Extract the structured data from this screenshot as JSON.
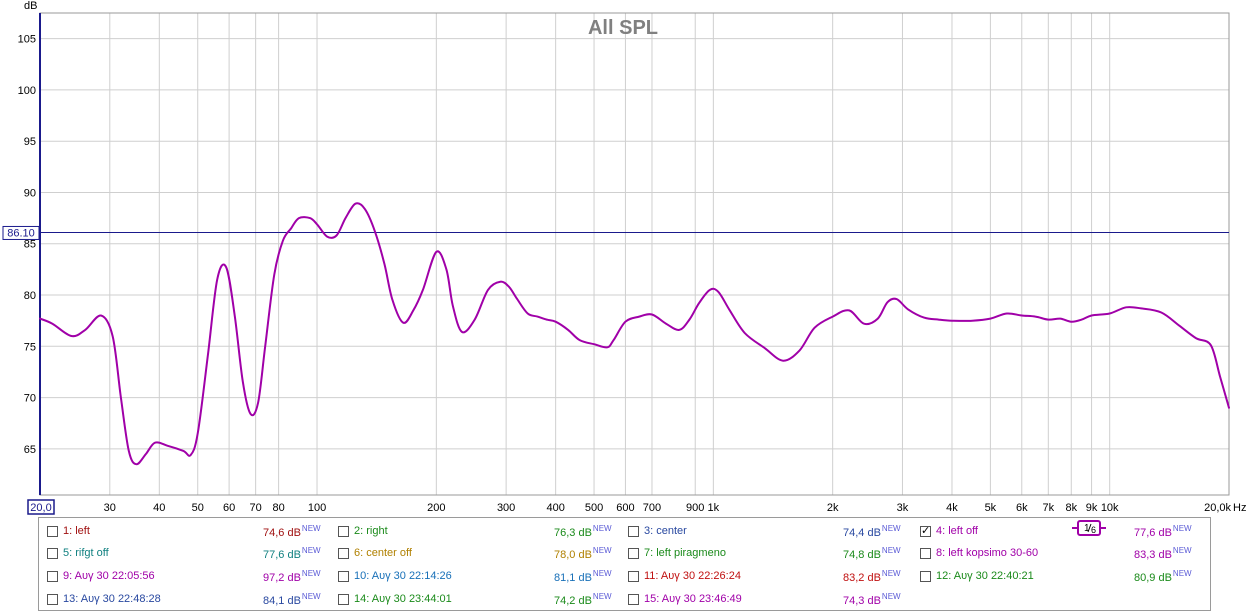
{
  "chart_data": {
    "type": "line",
    "title": "All SPL",
    "ylabel": "dB",
    "xlabel": "Hz",
    "x_scale": "log",
    "xlim": [
      20,
      20000
    ],
    "ylim": [
      60.5,
      107.5
    ],
    "grid": true,
    "y_ticks": [
      65,
      70,
      75,
      80,
      85,
      90,
      95,
      100,
      105
    ],
    "y_tick_labels": [
      "65",
      "70",
      "75",
      "80",
      "85",
      "90",
      "95",
      "100",
      "105"
    ],
    "x_ticks": [
      30,
      40,
      50,
      60,
      70,
      80,
      100,
      200,
      300,
      400,
      500,
      600,
      700,
      900,
      1000,
      2000,
      3000,
      4000,
      5000,
      6000,
      7000,
      8000,
      9000,
      10000,
      20000
    ],
    "x_tick_labels": [
      "30",
      "40",
      "50",
      "60",
      "70",
      "80",
      "100",
      "200",
      "300",
      "400",
      "500",
      "600",
      "700",
      "900",
      "1k",
      "2k",
      "3k",
      "4k",
      "5k",
      "6k",
      "7k",
      "8k",
      "9k",
      "10k",
      "20,0k"
    ],
    "x_start_label": "20,0",
    "marker_level": 86.1,
    "marker_label": "86.10",
    "series": [
      {
        "name": "4: left off",
        "color": "#a000a8",
        "x": [
          20,
          21.5,
          24,
          26,
          28.5,
          30.5,
          32,
          33.5,
          35,
          37,
          39,
          42,
          46,
          48,
          50,
          53,
          56,
          59,
          62,
          65,
          68,
          71,
          74,
          78,
          82,
          86,
          90,
          96,
          100,
          106,
          112,
          118,
          125,
          132,
          140,
          148,
          155,
          165,
          175,
          185,
          200,
          212,
          220,
          232,
          250,
          270,
          290,
          305,
          320,
          340,
          360,
          380,
          400,
          430,
          460,
          500,
          540,
          560,
          600,
          650,
          700,
          760,
          820,
          870,
          920,
          980,
          1030,
          1100,
          1200,
          1350,
          1500,
          1650,
          1800,
          2000,
          2200,
          2400,
          2600,
          2750,
          2900,
          3100,
          3400,
          3700,
          4000,
          4500,
          5000,
          5500,
          6000,
          6500,
          7000,
          7500,
          8000,
          8500,
          9000,
          10000,
          11000,
          12000,
          13500,
          15000,
          16500,
          18000,
          19000,
          20000
        ],
        "y": [
          77.7,
          77.2,
          76.0,
          76.6,
          78.0,
          76.0,
          70.0,
          64.8,
          63.5,
          64.5,
          65.6,
          65.3,
          64.8,
          64.4,
          66.5,
          74.0,
          81.5,
          82.7,
          78.0,
          71.5,
          68.4,
          69.5,
          75.0,
          82.0,
          85.3,
          86.5,
          87.5,
          87.5,
          86.9,
          85.7,
          85.8,
          87.5,
          88.9,
          88.4,
          86.2,
          83.0,
          79.5,
          77.3,
          78.5,
          80.5,
          84.2,
          82.5,
          79.0,
          76.4,
          77.6,
          80.5,
          81.3,
          80.8,
          79.6,
          78.2,
          77.9,
          77.6,
          77.4,
          76.6,
          75.6,
          75.2,
          74.9,
          75.6,
          77.4,
          77.9,
          78.1,
          77.2,
          76.6,
          77.6,
          79.2,
          80.5,
          80.3,
          78.5,
          76.3,
          74.8,
          73.6,
          74.6,
          76.8,
          77.9,
          78.5,
          77.2,
          77.7,
          79.3,
          79.6,
          78.6,
          77.8,
          77.6,
          77.5,
          77.5,
          77.7,
          78.2,
          78.0,
          77.9,
          77.6,
          77.7,
          77.4,
          77.6,
          78.0,
          78.2,
          78.8,
          78.7,
          78.3,
          77.0,
          75.8,
          75.1,
          72.0,
          69.0
        ]
      }
    ]
  },
  "legend": {
    "items": [
      {
        "label": "1: left",
        "value": "74,6 dB",
        "new": "NEW",
        "color": "#a01010",
        "checked": false
      },
      {
        "label": "2: right",
        "value": "76,3 dB",
        "new": "NEW",
        "color": "#1a8a1a",
        "checked": false
      },
      {
        "label": "3: center",
        "value": "74,4 dB",
        "new": "NEW",
        "color": "#2848a0",
        "checked": false
      },
      {
        "label": "4: left off",
        "value": "77,6 dB",
        "new": "NEW",
        "color": "#a000a8",
        "checked": true
      },
      {
        "label": "5: rifgt off",
        "value": "77,6 dB",
        "new": "NEW",
        "color": "#108080",
        "checked": false
      },
      {
        "label": "6: center off",
        "value": "78,0 dB",
        "new": "NEW",
        "color": "#b08000",
        "checked": false
      },
      {
        "label": "7: left piragmeno",
        "value": "74,8 dB",
        "new": "NEW",
        "color": "#1a8a1a",
        "checked": false
      },
      {
        "label": "8: left kopsimo 30-60",
        "value": "83,3 dB",
        "new": "NEW",
        "color": "#a000a8",
        "checked": false
      },
      {
        "label": "9: Αυγ 30 22:05:56",
        "value": "97,2 dB",
        "new": "NEW",
        "color": "#a000a8",
        "checked": false
      },
      {
        "label": "10: Αυγ 30 22:14:26",
        "value": "81,1 dB",
        "new": "NEW",
        "color": "#1870b8",
        "checked": false
      },
      {
        "label": "11: Αυγ 30 22:26:24",
        "value": "83,2 dB",
        "new": "NEW",
        "color": "#c01010",
        "checked": false
      },
      {
        "label": "12: Αυγ 30 22:40:21",
        "value": "80,9 dB",
        "new": "NEW",
        "color": "#1a8a1a",
        "checked": false
      },
      {
        "label": "13: Αυγ 30 22:48:28",
        "value": "84,1 dB",
        "new": "NEW",
        "color": "#2848a0",
        "checked": false
      },
      {
        "label": "14: Αυγ 30 23:44:01",
        "value": "74,2 dB",
        "new": "NEW",
        "color": "#1a8a1a",
        "checked": false
      },
      {
        "label": "15: Αυγ 30 23:46:49",
        "value": "74,3 dB",
        "new": "NEW",
        "color": "#a000a8",
        "checked": false
      }
    ],
    "smoothing": {
      "numerator": "1",
      "denominator": "6"
    }
  },
  "colors": {
    "grid": "#cfcfcf",
    "plot_border": "#9a9a9a",
    "marker_line": "#1a1a8c",
    "title": "#808080",
    "new_tag": "#5b5bd6"
  }
}
